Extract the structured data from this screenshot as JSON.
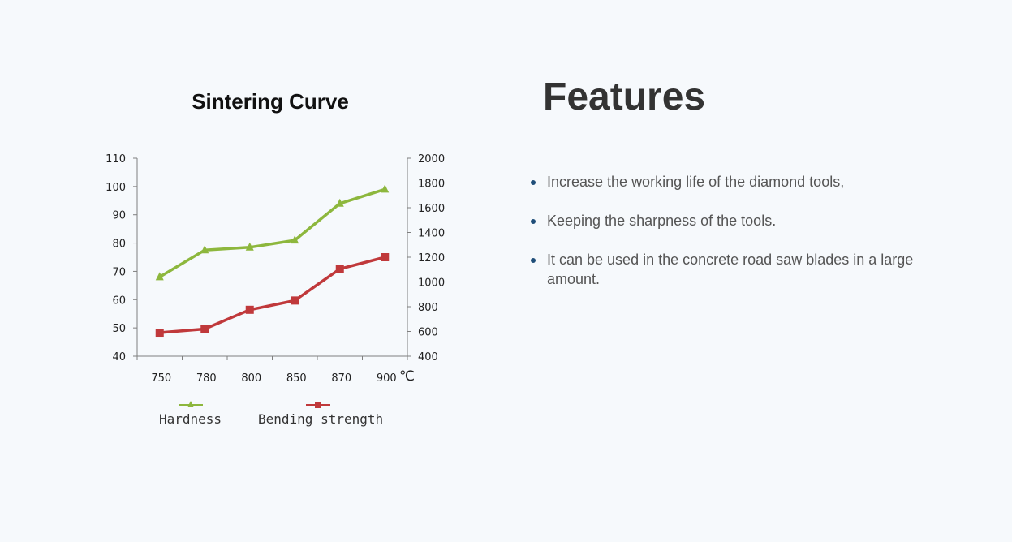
{
  "chart_data": {
    "type": "line",
    "title": "Sintering Curve",
    "categories": [
      "750",
      "780",
      "800",
      "850",
      "870",
      "900"
    ],
    "x_unit": "℃",
    "y_left": {
      "min": 40,
      "max": 110,
      "step": 10,
      "ticks": [
        "110",
        "100",
        "90",
        "80",
        "70",
        "60",
        "50",
        "40"
      ]
    },
    "y_right": {
      "min": 400,
      "max": 2000,
      "step": 200,
      "ticks": [
        "2000",
        "1800",
        "1600",
        "1400",
        "1200",
        "1000",
        "800",
        "600",
        "400"
      ]
    },
    "series": [
      {
        "name": "Hardness",
        "axis": "left",
        "color": "#8db73d",
        "marker": "triangle",
        "values": [
          68,
          77.5,
          78.5,
          81,
          94,
          99
        ]
      },
      {
        "name": "Bending strength",
        "axis": "right",
        "color": "#c0393b",
        "marker": "square",
        "values": [
          590,
          620,
          775,
          850,
          1105,
          1200
        ]
      }
    ],
    "grid": false,
    "legend": "bottom"
  },
  "features": {
    "title": "Features",
    "items": [
      "Increase the working life of the diamond tools,",
      "Keeping the sharpness of the tools.",
      "It can be used in the concrete road saw blades in a large amount."
    ]
  }
}
